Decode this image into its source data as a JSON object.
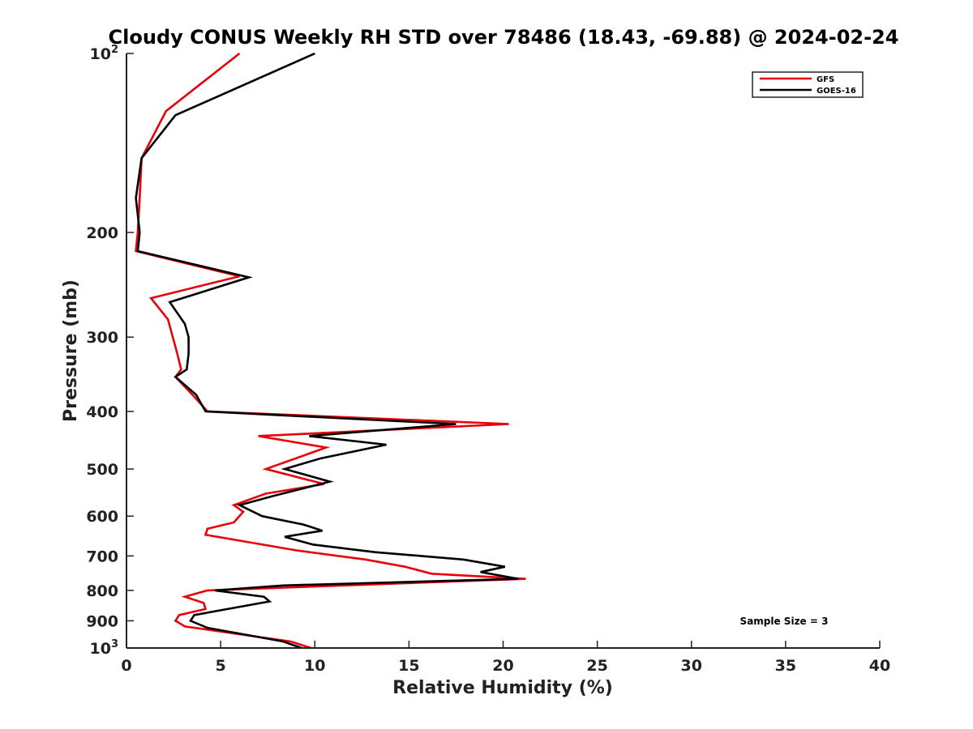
{
  "chart_data": {
    "type": "line",
    "title": "Cloudy CONUS Weekly RH STD over 78486 (18.43, -69.88) @ 2024-02-24",
    "xlabel": "Relative Humidity (%)",
    "ylabel": "Pressure (mb)",
    "xlim": [
      0,
      40
    ],
    "ylim": [
      100,
      1000
    ],
    "y_scale": "log",
    "y_reversed": true,
    "grid": false,
    "legend_position": "top-right",
    "x_ticks": [
      0,
      5,
      10,
      15,
      20,
      25,
      30,
      35,
      40
    ],
    "y_ticks": [
      {
        "value": 100,
        "base": "10",
        "exp": "2"
      },
      {
        "value": 200,
        "label": "200"
      },
      {
        "value": 300,
        "label": "300"
      },
      {
        "value": 400,
        "label": "400"
      },
      {
        "value": 500,
        "label": "500"
      },
      {
        "value": 600,
        "label": "600"
      },
      {
        "value": 700,
        "label": "700"
      },
      {
        "value": 800,
        "label": "800"
      },
      {
        "value": 900,
        "label": "900"
      },
      {
        "value": 1000,
        "base": "10",
        "exp": "3"
      }
    ],
    "series": [
      {
        "name": "GFS",
        "color": "#e8000b",
        "points": [
          [
            6.0,
            100
          ],
          [
            2.1,
            125
          ],
          [
            0.8,
            150
          ],
          [
            0.7,
            175
          ],
          [
            0.6,
            200
          ],
          [
            0.5,
            215
          ],
          [
            6.0,
            237
          ],
          [
            1.3,
            258
          ],
          [
            2.2,
            280
          ],
          [
            2.7,
            320
          ],
          [
            2.9,
            340
          ],
          [
            2.6,
            350
          ],
          [
            3.5,
            375
          ],
          [
            4.3,
            400
          ],
          [
            20.3,
            420
          ],
          [
            7.0,
            440
          ],
          [
            10.6,
            460
          ],
          [
            7.4,
            500
          ],
          [
            10.5,
            530
          ],
          [
            7.4,
            550
          ],
          [
            5.7,
            575
          ],
          [
            6.2,
            590
          ],
          [
            5.7,
            615
          ],
          [
            4.3,
            630
          ],
          [
            4.2,
            645
          ],
          [
            9.0,
            685
          ],
          [
            12.7,
            710
          ],
          [
            14.8,
            730
          ],
          [
            16.2,
            750
          ],
          [
            21.2,
            765
          ],
          [
            4.3,
            800
          ],
          [
            3.1,
            820
          ],
          [
            4.1,
            840
          ],
          [
            4.2,
            860
          ],
          [
            2.8,
            880
          ],
          [
            2.6,
            900
          ],
          [
            3.1,
            920
          ],
          [
            5.7,
            945
          ],
          [
            8.7,
            975
          ],
          [
            9.8,
            1000
          ]
        ]
      },
      {
        "name": "GOES-16",
        "color": "#000000",
        "points": [
          [
            10.0,
            100
          ],
          [
            2.6,
            127
          ],
          [
            0.8,
            150
          ],
          [
            0.5,
            175
          ],
          [
            0.7,
            200
          ],
          [
            0.6,
            215
          ],
          [
            6.5,
            238
          ],
          [
            2.3,
            262
          ],
          [
            3.1,
            285
          ],
          [
            3.3,
            300
          ],
          [
            3.3,
            320
          ],
          [
            3.2,
            340
          ],
          [
            2.6,
            350
          ],
          [
            3.7,
            375
          ],
          [
            4.2,
            400
          ],
          [
            17.5,
            420
          ],
          [
            9.7,
            440
          ],
          [
            13.8,
            455
          ],
          [
            10.3,
            480
          ],
          [
            8.4,
            500
          ],
          [
            10.8,
            525
          ],
          [
            7.8,
            555
          ],
          [
            6.0,
            575
          ],
          [
            7.2,
            600
          ],
          [
            9.4,
            620
          ],
          [
            10.4,
            635
          ],
          [
            8.4,
            650
          ],
          [
            9.9,
            670
          ],
          [
            13.2,
            690
          ],
          [
            17.9,
            710
          ],
          [
            20.1,
            730
          ],
          [
            18.8,
            745
          ],
          [
            20.8,
            765
          ],
          [
            8.3,
            785
          ],
          [
            4.7,
            800
          ],
          [
            7.3,
            820
          ],
          [
            7.6,
            835
          ],
          [
            3.6,
            880
          ],
          [
            3.4,
            900
          ],
          [
            4.3,
            925
          ],
          [
            8.3,
            975
          ],
          [
            9.3,
            1000
          ]
        ]
      }
    ],
    "legend": [
      {
        "label": "GFS",
        "color": "#e8000b"
      },
      {
        "label": "GOES-16",
        "color": "#000000"
      }
    ],
    "annotation": "Sample Size = 3"
  }
}
